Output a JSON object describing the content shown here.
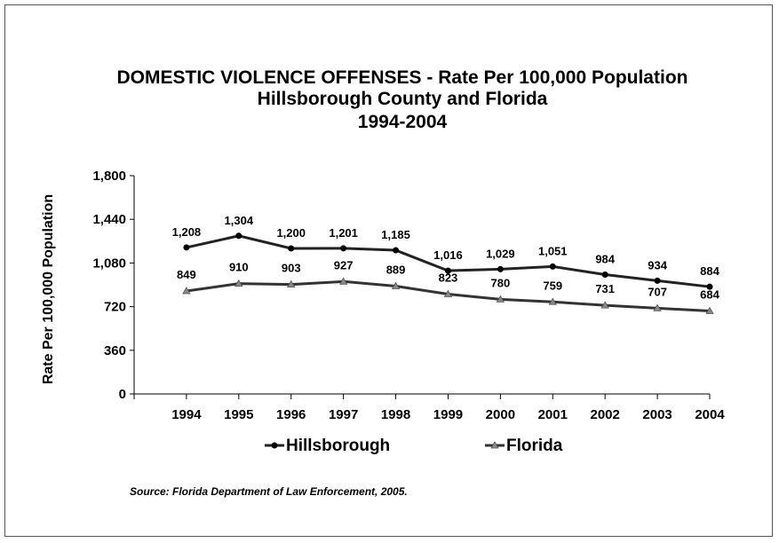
{
  "chart_data": {
    "type": "line",
    "title_lines": [
      "DOMESTIC VIOLENCE OFFENSES - Rate Per 100,000 Population",
      "Hillsborough County and Florida",
      "1994-2004"
    ],
    "ylabel": "Rate Per 100,000 Population",
    "xlabel": "",
    "categories": [
      "1994",
      "1995",
      "1996",
      "1997",
      "1998",
      "1999",
      "2000",
      "2001",
      "2002",
      "2003",
      "2004"
    ],
    "ylim": [
      0,
      1800
    ],
    "yticks": [
      0,
      360,
      720,
      1080,
      1440,
      1800
    ],
    "ytick_labels": [
      "0",
      "360",
      "720",
      "1,080",
      "1,440",
      "1,800"
    ],
    "grid": false,
    "legend_position": "bottom",
    "series": [
      {
        "name": "Hillsborough",
        "marker": "circle",
        "color": "#222222",
        "values": [
          1208,
          1304,
          1200,
          1201,
          1185,
          1016,
          1029,
          1051,
          984,
          934,
          884
        ],
        "labels": [
          "1,208",
          "1,304",
          "1,200",
          "1,201",
          "1,185",
          "1,016",
          "1,029",
          "1,051",
          "984",
          "934",
          "884"
        ]
      },
      {
        "name": "Florida",
        "marker": "triangle",
        "color": "#333333",
        "values": [
          849,
          910,
          903,
          927,
          889,
          823,
          780,
          759,
          731,
          707,
          684
        ],
        "labels": [
          "849",
          "910",
          "903",
          "927",
          "889",
          "823",
          "780",
          "759",
          "731",
          "707",
          "684"
        ]
      }
    ],
    "source": "Source:  Florida Department of Law Enforcement, 2005."
  }
}
